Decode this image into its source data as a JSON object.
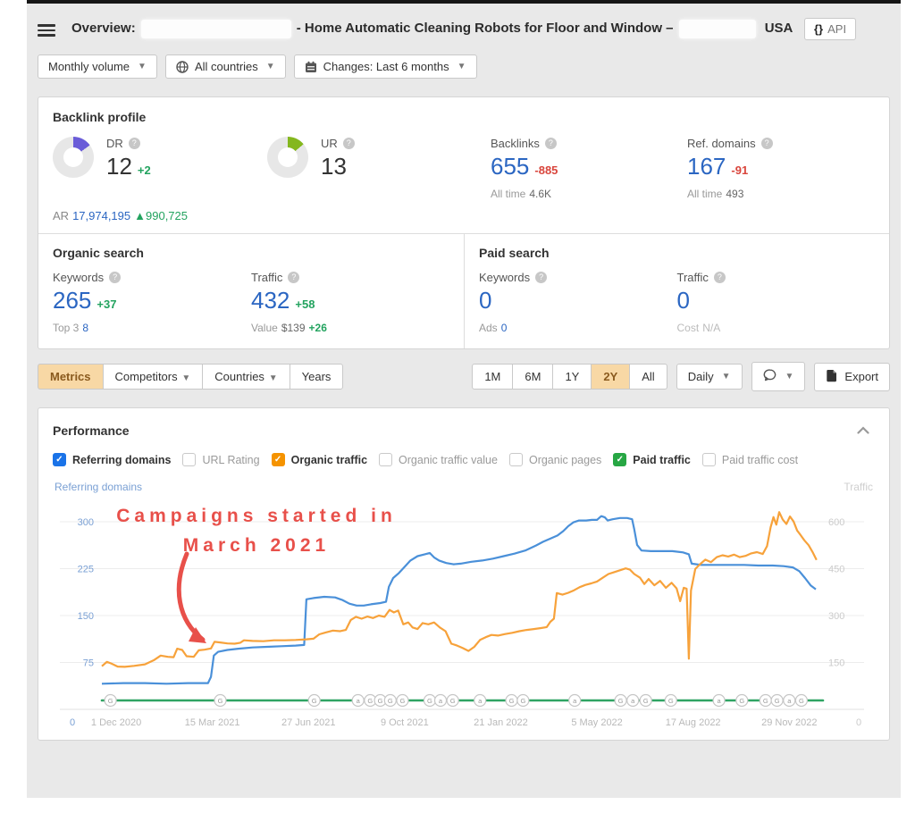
{
  "header": {
    "title_prefix": "Overview:",
    "title_mid": "- Home Automatic Cleaning Robots for Floor and Window –",
    "title_suffix": "USA",
    "api_braces": "{}",
    "api_label": "API"
  },
  "filters": {
    "volume": "Monthly volume",
    "countries": "All countries",
    "changes": "Changes: Last 6 months"
  },
  "backlink_profile": {
    "section_title": "Backlink profile",
    "dr": {
      "label": "DR",
      "value": "12",
      "delta": "+2",
      "donut_color": "#6a5cd8",
      "percent": 15
    },
    "ur": {
      "label": "UR",
      "value": "13",
      "donut_color": "#84b71e",
      "percent": 14
    },
    "ar": {
      "label": "AR",
      "value": "17,974,195",
      "delta": "▲990,725"
    },
    "backlinks": {
      "label": "Backlinks",
      "value": "655",
      "delta": "-885",
      "alltime_label": "All time",
      "alltime": "4.6K"
    },
    "ref_domains": {
      "label": "Ref. domains",
      "value": "167",
      "delta": "-91",
      "alltime_label": "All time",
      "alltime": "493"
    }
  },
  "organic_search": {
    "section_title": "Organic search",
    "keywords": {
      "label": "Keywords",
      "value": "265",
      "delta": "+37",
      "sub_label": "Top 3",
      "sub_value": "8"
    },
    "traffic": {
      "label": "Traffic",
      "value": "432",
      "delta": "+58",
      "sub_label": "Value",
      "sub_value": "$139",
      "sub_delta": "+26"
    }
  },
  "paid_search": {
    "section_title": "Paid search",
    "keywords": {
      "label": "Keywords",
      "value": "0",
      "sub_label": "Ads",
      "sub_value": "0"
    },
    "traffic": {
      "label": "Traffic",
      "value": "0",
      "sub_label": "Cost",
      "sub_value": "N/A"
    }
  },
  "toolbar": {
    "tabs": [
      {
        "label": "Metrics",
        "active": true,
        "caret": false
      },
      {
        "label": "Competitors",
        "active": false,
        "caret": true
      },
      {
        "label": "Countries",
        "active": false,
        "caret": true
      },
      {
        "label": "Years",
        "active": false,
        "caret": false
      }
    ],
    "ranges": [
      "1M",
      "6M",
      "1Y",
      "2Y",
      "All"
    ],
    "active_range": "2Y",
    "granularity": "Daily",
    "export_label": "Export"
  },
  "performance": {
    "section_title": "Performance",
    "checkboxes": [
      {
        "label": "Referring domains",
        "checked": true,
        "color": "#1a73e8"
      },
      {
        "label": "URL Rating",
        "checked": false
      },
      {
        "label": "Organic traffic",
        "checked": true,
        "color": "#f59300"
      },
      {
        "label": "Organic traffic value",
        "checked": false
      },
      {
        "label": "Organic pages",
        "checked": false
      },
      {
        "label": "Paid traffic",
        "checked": true,
        "color": "#27a744"
      },
      {
        "label": "Paid traffic cost",
        "checked": false
      }
    ]
  },
  "annotation": {
    "line1": "Campaigns started in",
    "line2": "March 2021",
    "color": "#e8504a"
  },
  "chart_data": {
    "type": "line",
    "left_axis": {
      "label": "Referring domains",
      "ticks": [
        0,
        75,
        150,
        225,
        300
      ],
      "max": 315,
      "color": "#7aa0d4"
    },
    "right_axis": {
      "label": "Traffic",
      "ticks": [
        0,
        150,
        300,
        450,
        600
      ],
      "max": 630,
      "color": "#cbcbcb"
    },
    "x_ticks": [
      {
        "label": "1 Dec 2020",
        "pos": 2
      },
      {
        "label": "15 Mar 2021",
        "pos": 15.4
      },
      {
        "label": "27 Jun 2021",
        "pos": 28.8
      },
      {
        "label": "9 Oct 2021",
        "pos": 42.2
      },
      {
        "label": "21 Jan 2022",
        "pos": 55.6
      },
      {
        "label": "5 May 2022",
        "pos": 69
      },
      {
        "label": "17 Aug 2022",
        "pos": 82.4
      },
      {
        "label": "29 Nov 2022",
        "pos": 95.8
      }
    ],
    "series": [
      {
        "name": "Referring domains",
        "axis": "left",
        "color": "#4a90d9",
        "points": [
          [
            0,
            41
          ],
          [
            3,
            42
          ],
          [
            6,
            42
          ],
          [
            9,
            41
          ],
          [
            12,
            42
          ],
          [
            14.8,
            42
          ],
          [
            15.2,
            52
          ],
          [
            15.6,
            86
          ],
          [
            16.2,
            92
          ],
          [
            17.5,
            95
          ],
          [
            19,
            97
          ],
          [
            21,
            99
          ],
          [
            23,
            100
          ],
          [
            25,
            101
          ],
          [
            27,
            102
          ],
          [
            28.2,
            103
          ],
          [
            28.5,
            176
          ],
          [
            29.5,
            178
          ],
          [
            31,
            180
          ],
          [
            32.5,
            179
          ],
          [
            33.5,
            175
          ],
          [
            34.5,
            169
          ],
          [
            35.5,
            166
          ],
          [
            36.5,
            166
          ],
          [
            37.5,
            168
          ],
          [
            38.8,
            170
          ],
          [
            39.6,
            172
          ],
          [
            40,
            196
          ],
          [
            40.6,
            210
          ],
          [
            41.4,
            218
          ],
          [
            42.2,
            228
          ],
          [
            43,
            238
          ],
          [
            44,
            245
          ],
          [
            45,
            248
          ],
          [
            45.7,
            250
          ],
          [
            46.3,
            243
          ],
          [
            47,
            238
          ],
          [
            48,
            234
          ],
          [
            49,
            232
          ],
          [
            50,
            233
          ],
          [
            51.5,
            236
          ],
          [
            53,
            238
          ],
          [
            54.5,
            241
          ],
          [
            56,
            245
          ],
          [
            57.5,
            249
          ],
          [
            59,
            254
          ],
          [
            60.5,
            262
          ],
          [
            61.5,
            268
          ],
          [
            62.5,
            273
          ],
          [
            63.5,
            278
          ],
          [
            64.3,
            285
          ],
          [
            65,
            293
          ],
          [
            65.7,
            299
          ],
          [
            66.5,
            302
          ],
          [
            67.5,
            302
          ],
          [
            68.3,
            303
          ],
          [
            69,
            303
          ],
          [
            69.6,
            309
          ],
          [
            70.1,
            307
          ],
          [
            70.5,
            302
          ],
          [
            71.2,
            304
          ],
          [
            72.2,
            306
          ],
          [
            73.2,
            306
          ],
          [
            73.9,
            304
          ],
          [
            74.2,
            288
          ],
          [
            74.6,
            263
          ],
          [
            75.2,
            254
          ],
          [
            76.5,
            253
          ],
          [
            78,
            253
          ],
          [
            79.5,
            253
          ],
          [
            81,
            251
          ],
          [
            81.8,
            248
          ],
          [
            82.2,
            233
          ],
          [
            83.5,
            231
          ],
          [
            85.5,
            231
          ],
          [
            87.5,
            231
          ],
          [
            89.5,
            231
          ],
          [
            91.5,
            230
          ],
          [
            93.5,
            230
          ],
          [
            95,
            229
          ],
          [
            96.3,
            227
          ],
          [
            97.2,
            221
          ],
          [
            98,
            210
          ],
          [
            98.8,
            198
          ],
          [
            99.5,
            192
          ]
        ]
      },
      {
        "name": "Organic traffic",
        "axis": "right",
        "color": "#f7a23b",
        "points": [
          [
            0,
            138
          ],
          [
            0.7,
            152
          ],
          [
            1.3,
            147
          ],
          [
            2.2,
            137
          ],
          [
            3.2,
            136
          ],
          [
            4.5,
            139
          ],
          [
            6,
            144
          ],
          [
            7.3,
            158
          ],
          [
            8.2,
            172
          ],
          [
            9.2,
            168
          ],
          [
            10,
            167
          ],
          [
            10.5,
            194
          ],
          [
            11.2,
            190
          ],
          [
            11.8,
            170
          ],
          [
            12.8,
            168
          ],
          [
            13.5,
            189
          ],
          [
            14.3,
            191
          ],
          [
            15.2,
            195
          ],
          [
            15.7,
            216
          ],
          [
            16.5,
            214
          ],
          [
            17.5,
            211
          ],
          [
            18.5,
            210
          ],
          [
            19.3,
            213
          ],
          [
            19.8,
            221
          ],
          [
            21,
            219
          ],
          [
            22.5,
            218
          ],
          [
            24,
            221
          ],
          [
            25.5,
            221
          ],
          [
            27,
            222
          ],
          [
            28.5,
            224
          ],
          [
            29.5,
            226
          ],
          [
            30.3,
            240
          ],
          [
            31.2,
            246
          ],
          [
            32.2,
            252
          ],
          [
            33.2,
            250
          ],
          [
            34,
            254
          ],
          [
            34.7,
            286
          ],
          [
            35.4,
            296
          ],
          [
            36.2,
            290
          ],
          [
            37,
            297
          ],
          [
            37.8,
            292
          ],
          [
            38.6,
            300
          ],
          [
            39.4,
            296
          ],
          [
            40.1,
            318
          ],
          [
            40.7,
            310
          ],
          [
            41.3,
            316
          ],
          [
            42,
            272
          ],
          [
            42.7,
            278
          ],
          [
            43.3,
            262
          ],
          [
            44,
            257
          ],
          [
            44.7,
            276
          ],
          [
            45.5,
            272
          ],
          [
            46.3,
            278
          ],
          [
            47.1,
            262
          ],
          [
            47.9,
            250
          ],
          [
            48.7,
            210
          ],
          [
            49.5,
            204
          ],
          [
            50.3,
            196
          ],
          [
            51.1,
            187
          ],
          [
            51.9,
            200
          ],
          [
            52.7,
            222
          ],
          [
            53.5,
            231
          ],
          [
            54.3,
            238
          ],
          [
            55.2,
            236
          ],
          [
            56.2,
            241
          ],
          [
            57.2,
            245
          ],
          [
            58.2,
            250
          ],
          [
            59.2,
            254
          ],
          [
            60.2,
            257
          ],
          [
            61.2,
            260
          ],
          [
            62,
            263
          ],
          [
            62.5,
            280
          ],
          [
            63,
            290
          ],
          [
            63.4,
            372
          ],
          [
            64.2,
            367
          ],
          [
            65,
            373
          ],
          [
            65.8,
            381
          ],
          [
            66.6,
            391
          ],
          [
            67.4,
            398
          ],
          [
            68.2,
            403
          ],
          [
            69,
            409
          ],
          [
            69.8,
            421
          ],
          [
            70.6,
            433
          ],
          [
            71.4,
            439
          ],
          [
            72.2,
            445
          ],
          [
            73,
            451
          ],
          [
            73.6,
            447
          ],
          [
            74.2,
            433
          ],
          [
            75,
            421
          ],
          [
            75.6,
            401
          ],
          [
            76.2,
            417
          ],
          [
            77,
            397
          ],
          [
            77.8,
            411
          ],
          [
            78.6,
            389
          ],
          [
            79.4,
            405
          ],
          [
            80.1,
            387
          ],
          [
            80.6,
            346
          ],
          [
            81.1,
            389
          ],
          [
            81.5,
            386
          ],
          [
            81.8,
            162
          ],
          [
            82.1,
            380
          ],
          [
            82.7,
            449
          ],
          [
            83.3,
            463
          ],
          [
            84.1,
            479
          ],
          [
            84.9,
            471
          ],
          [
            85.7,
            487
          ],
          [
            86.5,
            493
          ],
          [
            87.3,
            489
          ],
          [
            88.1,
            495
          ],
          [
            88.9,
            487
          ],
          [
            89.7,
            491
          ],
          [
            90.5,
            499
          ],
          [
            91.3,
            503
          ],
          [
            92.1,
            497
          ],
          [
            92.7,
            522
          ],
          [
            93.2,
            582
          ],
          [
            93.6,
            615
          ],
          [
            94,
            591
          ],
          [
            94.4,
            631
          ],
          [
            94.9,
            607
          ],
          [
            95.4,
            593
          ],
          [
            95.9,
            617
          ],
          [
            96.4,
            601
          ],
          [
            96.9,
            572
          ],
          [
            97.4,
            557
          ],
          [
            97.9,
            541
          ],
          [
            98.5,
            525
          ],
          [
            99.1,
            501
          ],
          [
            99.6,
            478
          ]
        ]
      },
      {
        "name": "Paid traffic",
        "axis": "right",
        "color": "#2fa463",
        "flat_value": 0
      }
    ],
    "events": [
      {
        "x": 1.2,
        "g": "G"
      },
      {
        "x": 16.5,
        "g": "G"
      },
      {
        "x": 29.6,
        "g": "G"
      },
      {
        "x": 35.7,
        "g": "a"
      },
      {
        "x": 37.4,
        "g": "G"
      },
      {
        "x": 38.8,
        "g": "G"
      },
      {
        "x": 40.2,
        "g": "G"
      },
      {
        "x": 41.9,
        "g": "G"
      },
      {
        "x": 45.7,
        "g": "G"
      },
      {
        "x": 47.2,
        "g": "a"
      },
      {
        "x": 48.9,
        "g": "G"
      },
      {
        "x": 52.7,
        "g": "a"
      },
      {
        "x": 57.1,
        "g": "G"
      },
      {
        "x": 58.7,
        "g": "G"
      },
      {
        "x": 65.9,
        "g": "a"
      },
      {
        "x": 72.3,
        "g": "G"
      },
      {
        "x": 74,
        "g": "a"
      },
      {
        "x": 75.8,
        "g": "G"
      },
      {
        "x": 79.3,
        "g": "G"
      },
      {
        "x": 86,
        "g": "a"
      },
      {
        "x": 89.2,
        "g": "G"
      },
      {
        "x": 92.5,
        "g": "G"
      },
      {
        "x": 94.1,
        "g": "G"
      },
      {
        "x": 95.8,
        "g": "a"
      },
      {
        "x": 97.5,
        "g": "G"
      }
    ],
    "grid": true,
    "legend_position": "none"
  }
}
